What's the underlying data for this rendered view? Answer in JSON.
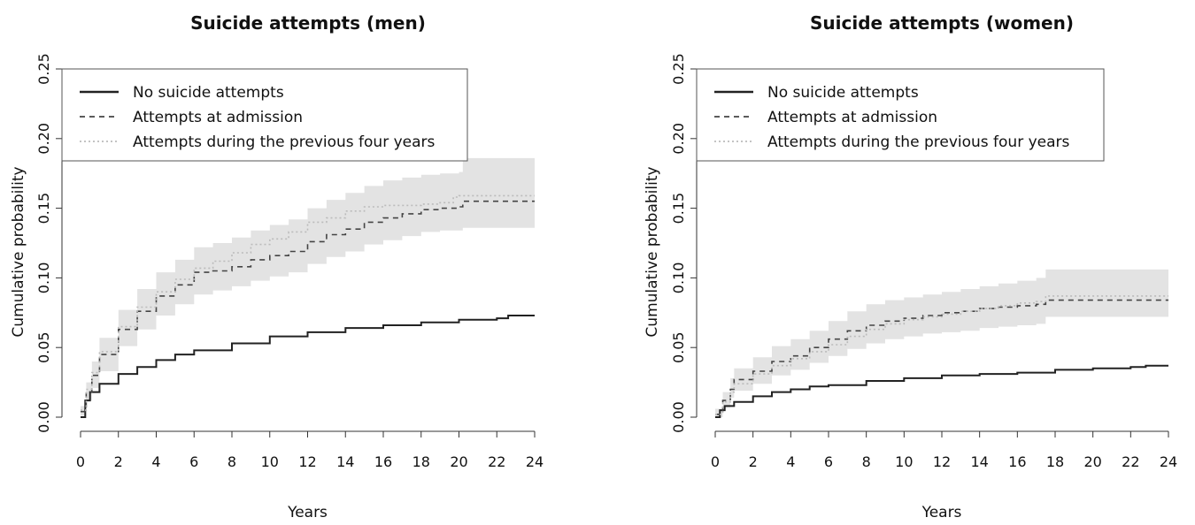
{
  "chart_data": [
    {
      "type": "line",
      "title": "Suicide attempts (men)",
      "xlabel": "Years",
      "ylabel": "Cumulative probability",
      "xlim": [
        0,
        24
      ],
      "ylim": [
        0,
        0.25
      ],
      "x_ticks": [
        "0",
        "2",
        "4",
        "6",
        "8",
        "10",
        "12",
        "14",
        "16",
        "18",
        "20",
        "22",
        "24"
      ],
      "y_ticks": [
        "0.00",
        "0.05",
        "0.10",
        "0.15",
        "0.20",
        "0.25"
      ],
      "legend_position": "top-left",
      "grid": false,
      "confidence_band_color": "#e3e3e3",
      "series": [
        {
          "name": "No suicide attempts",
          "style": "solid",
          "color": "#222222",
          "x": [
            0,
            0.25,
            0.5,
            1,
            2,
            3,
            4,
            5,
            6,
            8,
            10,
            12,
            14,
            16,
            18,
            20,
            22,
            22.6,
            24
          ],
          "y": [
            0,
            0.012,
            0.018,
            0.024,
            0.031,
            0.036,
            0.041,
            0.045,
            0.048,
            0.053,
            0.058,
            0.061,
            0.064,
            0.066,
            0.068,
            0.07,
            0.071,
            0.073,
            0.073
          ]
        },
        {
          "name": "Attempts at admission",
          "style": "dashed",
          "color": "#444444",
          "x": [
            0,
            0.3,
            0.6,
            1,
            2,
            3,
            4,
            5,
            6,
            7,
            8,
            9,
            10,
            11,
            12,
            13,
            14,
            15,
            16,
            17,
            18,
            19,
            20,
            20.2,
            24
          ],
          "y": [
            0.004,
            0.018,
            0.03,
            0.045,
            0.063,
            0.076,
            0.087,
            0.095,
            0.104,
            0.105,
            0.108,
            0.113,
            0.116,
            0.119,
            0.126,
            0.131,
            0.135,
            0.14,
            0.143,
            0.146,
            0.149,
            0.15,
            0.151,
            0.155,
            0.155
          ],
          "ci_lower": [
            0.001,
            0.012,
            0.021,
            0.033,
            0.051,
            0.063,
            0.073,
            0.081,
            0.088,
            0.091,
            0.094,
            0.098,
            0.101,
            0.104,
            0.11,
            0.115,
            0.119,
            0.124,
            0.127,
            0.13,
            0.133,
            0.134,
            0.134,
            0.136,
            0.136
          ],
          "ci_upper": [
            0.008,
            0.025,
            0.04,
            0.057,
            0.077,
            0.092,
            0.104,
            0.113,
            0.122,
            0.125,
            0.129,
            0.134,
            0.138,
            0.142,
            0.15,
            0.156,
            0.161,
            0.166,
            0.17,
            0.172,
            0.174,
            0.175,
            0.176,
            0.186,
            0.186
          ]
        },
        {
          "name": "Attempts during the previous four years",
          "style": "dotted",
          "color": "#bbbbbb",
          "x": [
            0,
            0.3,
            0.6,
            1,
            2,
            3,
            4,
            5,
            6,
            7,
            8,
            9,
            10,
            11,
            12,
            13,
            14,
            15,
            16,
            17,
            18,
            19,
            19.7,
            20,
            24
          ],
          "y": [
            0.005,
            0.02,
            0.032,
            0.047,
            0.065,
            0.079,
            0.09,
            0.099,
            0.107,
            0.112,
            0.118,
            0.124,
            0.128,
            0.133,
            0.14,
            0.143,
            0.148,
            0.151,
            0.152,
            0.152,
            0.153,
            0.154,
            0.158,
            0.159,
            0.159
          ]
        }
      ]
    },
    {
      "type": "line",
      "title": "Suicide attempts (women)",
      "xlabel": "Years",
      "ylabel": "Cumulative probability",
      "xlim": [
        0,
        24
      ],
      "ylim": [
        0,
        0.25
      ],
      "x_ticks": [
        "0",
        "2",
        "4",
        "6",
        "8",
        "10",
        "12",
        "14",
        "16",
        "18",
        "20",
        "22",
        "24"
      ],
      "y_ticks": [
        "0.00",
        "0.05",
        "0.10",
        "0.15",
        "0.20",
        "0.25"
      ],
      "legend_position": "top-left",
      "grid": false,
      "confidence_band_color": "#e3e3e3",
      "series": [
        {
          "name": "No suicide attempts",
          "style": "solid",
          "color": "#222222",
          "x": [
            0,
            0.25,
            0.5,
            1,
            2,
            3,
            4,
            5,
            6,
            8,
            10,
            12,
            14,
            16,
            18,
            20,
            22,
            22.8,
            24
          ],
          "y": [
            0,
            0.005,
            0.008,
            0.011,
            0.015,
            0.018,
            0.02,
            0.022,
            0.023,
            0.026,
            0.028,
            0.03,
            0.031,
            0.032,
            0.034,
            0.035,
            0.036,
            0.037,
            0.037
          ]
        },
        {
          "name": "Attempts at admission",
          "style": "dashed",
          "color": "#444444",
          "x": [
            0,
            0.4,
            0.8,
            1,
            2,
            3,
            4,
            5,
            6,
            7,
            8,
            9,
            10,
            11,
            12,
            13,
            14,
            15,
            16,
            17,
            17.5,
            24
          ],
          "y": [
            0.002,
            0.012,
            0.02,
            0.027,
            0.033,
            0.04,
            0.044,
            0.05,
            0.056,
            0.062,
            0.066,
            0.069,
            0.071,
            0.073,
            0.075,
            0.076,
            0.078,
            0.079,
            0.08,
            0.081,
            0.084,
            0.084
          ],
          "ci_lower": [
            0.0,
            0.007,
            0.014,
            0.019,
            0.024,
            0.03,
            0.034,
            0.039,
            0.044,
            0.049,
            0.053,
            0.056,
            0.058,
            0.06,
            0.061,
            0.062,
            0.064,
            0.065,
            0.066,
            0.067,
            0.072,
            0.072
          ],
          "ci_upper": [
            0.006,
            0.018,
            0.028,
            0.035,
            0.043,
            0.051,
            0.056,
            0.062,
            0.069,
            0.076,
            0.081,
            0.084,
            0.086,
            0.088,
            0.09,
            0.092,
            0.094,
            0.096,
            0.098,
            0.1,
            0.106,
            0.106
          ]
        },
        {
          "name": "Attempts during the previous four years",
          "style": "dotted",
          "color": "#bbbbbb",
          "x": [
            0,
            0.4,
            0.8,
            1,
            2,
            3,
            4,
            5,
            6,
            7,
            8,
            9,
            10,
            11,
            12,
            13,
            14,
            15,
            16,
            17,
            17.5,
            24
          ],
          "y": [
            0.002,
            0.011,
            0.018,
            0.024,
            0.031,
            0.037,
            0.042,
            0.047,
            0.052,
            0.058,
            0.063,
            0.067,
            0.07,
            0.072,
            0.074,
            0.076,
            0.078,
            0.08,
            0.082,
            0.083,
            0.087,
            0.087
          ]
        }
      ]
    }
  ]
}
